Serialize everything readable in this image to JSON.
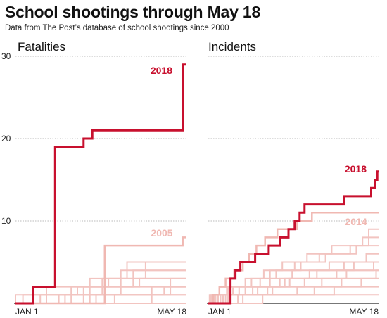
{
  "header": {
    "title": "School shootings through May 18",
    "subtitle": "Data from The Post’s database of school shootings since 2000"
  },
  "colors": {
    "highlight": "#c8102e",
    "faint": "#f2c4c0",
    "faint_label": "#f0b8b2",
    "grid": "#bbbbbb",
    "axis": "#777777"
  },
  "chart_data": [
    {
      "type": "line",
      "step": true,
      "title": "Fatalities",
      "x_unit": "day of year",
      "x_ticks": [
        "JAN 1",
        "MAY 18"
      ],
      "xlim": [
        0,
        138
      ],
      "ylim": [
        0,
        30
      ],
      "y_ticks": [
        10,
        20,
        30
      ],
      "y_tick_labels": [
        "10",
        "20",
        "30"
      ],
      "grid": true,
      "highlight": {
        "name": "2018",
        "points": [
          [
            0,
            0
          ],
          [
            14,
            0
          ],
          [
            14,
            2
          ],
          [
            32,
            2
          ],
          [
            32,
            19
          ],
          [
            55,
            19
          ],
          [
            55,
            20
          ],
          [
            62,
            20
          ],
          [
            62,
            21
          ],
          [
            135,
            21
          ],
          [
            135,
            29
          ],
          [
            138,
            29
          ]
        ]
      },
      "secondary": {
        "name": "2005",
        "points": [
          [
            0,
            0
          ],
          [
            72,
            0
          ],
          [
            72,
            7
          ],
          [
            135,
            7
          ],
          [
            135,
            8
          ],
          [
            138,
            8
          ]
        ]
      },
      "background": [
        [
          [
            0,
            0
          ],
          [
            6,
            0
          ],
          [
            6,
            1
          ],
          [
            138,
            1
          ]
        ],
        [
          [
            0,
            0
          ],
          [
            25,
            0
          ],
          [
            25,
            2
          ],
          [
            138,
            2
          ]
        ],
        [
          [
            0,
            0
          ],
          [
            40,
            0
          ],
          [
            40,
            1
          ],
          [
            70,
            1
          ],
          [
            70,
            3
          ],
          [
            138,
            3
          ]
        ],
        [
          [
            0,
            0
          ],
          [
            55,
            0
          ],
          [
            55,
            2
          ],
          [
            100,
            2
          ],
          [
            100,
            3
          ],
          [
            138,
            3
          ]
        ],
        [
          [
            0,
            0
          ],
          [
            60,
            0
          ],
          [
            60,
            3
          ],
          [
            90,
            3
          ],
          [
            90,
            5
          ],
          [
            138,
            5
          ]
        ],
        [
          [
            0,
            0
          ],
          [
            35,
            0
          ],
          [
            35,
            1
          ],
          [
            85,
            1
          ],
          [
            85,
            4
          ],
          [
            138,
            4
          ]
        ],
        [
          [
            0,
            0
          ],
          [
            110,
            0
          ],
          [
            110,
            2
          ],
          [
            138,
            2
          ]
        ],
        [
          [
            0,
            0
          ],
          [
            20,
            0
          ],
          [
            20,
            1
          ],
          [
            120,
            1
          ],
          [
            120,
            2
          ],
          [
            138,
            2
          ]
        ],
        [
          [
            0,
            0
          ],
          [
            80,
            0
          ],
          [
            80,
            1
          ],
          [
            138,
            1
          ]
        ],
        [
          [
            0,
            0
          ],
          [
            0,
            1
          ],
          [
            50,
            1
          ],
          [
            50,
            2
          ],
          [
            95,
            2
          ],
          [
            95,
            4
          ],
          [
            138,
            4
          ]
        ],
        [
          [
            0,
            0
          ],
          [
            45,
            0
          ],
          [
            45,
            2
          ],
          [
            75,
            2
          ],
          [
            75,
            3
          ],
          [
            105,
            3
          ],
          [
            105,
            5
          ],
          [
            138,
            5
          ]
        ],
        [
          [
            0,
            0
          ],
          [
            65,
            0
          ],
          [
            65,
            1
          ],
          [
            125,
            1
          ],
          [
            125,
            3
          ],
          [
            138,
            3
          ]
        ],
        [
          [
            0,
            0
          ],
          [
            138,
            0
          ]
        ]
      ]
    },
    {
      "type": "line",
      "step": true,
      "title": "Incidents",
      "x_unit": "day of year",
      "x_ticks": [
        "JAN 1",
        "MAY 18"
      ],
      "xlim": [
        0,
        138
      ],
      "ylim": [
        0,
        30
      ],
      "y_ticks": [
        10,
        20,
        30
      ],
      "grid": true,
      "highlight": {
        "name": "2018",
        "points": [
          [
            0,
            0
          ],
          [
            18,
            0
          ],
          [
            18,
            3
          ],
          [
            22,
            3
          ],
          [
            22,
            4
          ],
          [
            26,
            4
          ],
          [
            26,
            5
          ],
          [
            38,
            5
          ],
          [
            38,
            6
          ],
          [
            49,
            6
          ],
          [
            49,
            7
          ],
          [
            58,
            7
          ],
          [
            58,
            8
          ],
          [
            65,
            8
          ],
          [
            65,
            9
          ],
          [
            70,
            9
          ],
          [
            70,
            10
          ],
          [
            74,
            10
          ],
          [
            74,
            11
          ],
          [
            78,
            11
          ],
          [
            78,
            12
          ],
          [
            110,
            12
          ],
          [
            110,
            13
          ],
          [
            132,
            13
          ],
          [
            132,
            14
          ],
          [
            135,
            14
          ],
          [
            135,
            15
          ],
          [
            137,
            15
          ],
          [
            137,
            16
          ],
          [
            138,
            16
          ]
        ]
      },
      "secondary": {
        "name": "2014",
        "points": [
          [
            0,
            0
          ],
          [
            4,
            0
          ],
          [
            4,
            1
          ],
          [
            9,
            1
          ],
          [
            9,
            2
          ],
          [
            14,
            2
          ],
          [
            14,
            3
          ],
          [
            21,
            3
          ],
          [
            21,
            4
          ],
          [
            28,
            4
          ],
          [
            28,
            5
          ],
          [
            33,
            5
          ],
          [
            33,
            6
          ],
          [
            39,
            6
          ],
          [
            39,
            7
          ],
          [
            46,
            7
          ],
          [
            46,
            8
          ],
          [
            56,
            8
          ],
          [
            56,
            9
          ],
          [
            72,
            9
          ],
          [
            72,
            10
          ],
          [
            84,
            10
          ],
          [
            84,
            11
          ],
          [
            138,
            11
          ]
        ]
      },
      "background": [
        [
          [
            0,
            0
          ],
          [
            3,
            0
          ],
          [
            3,
            1
          ],
          [
            15,
            1
          ],
          [
            15,
            2
          ],
          [
            30,
            2
          ],
          [
            30,
            3
          ],
          [
            45,
            3
          ],
          [
            45,
            4
          ],
          [
            60,
            4
          ],
          [
            60,
            5
          ],
          [
            80,
            5
          ],
          [
            80,
            6
          ],
          [
            100,
            6
          ],
          [
            100,
            7
          ],
          [
            125,
            7
          ],
          [
            125,
            8
          ],
          [
            138,
            8
          ]
        ],
        [
          [
            0,
            0
          ],
          [
            8,
            0
          ],
          [
            8,
            1
          ],
          [
            20,
            1
          ],
          [
            20,
            2
          ],
          [
            35,
            2
          ],
          [
            35,
            3
          ],
          [
            55,
            3
          ],
          [
            55,
            4
          ],
          [
            75,
            4
          ],
          [
            75,
            5
          ],
          [
            95,
            5
          ],
          [
            95,
            6
          ],
          [
            120,
            6
          ],
          [
            120,
            7
          ],
          [
            130,
            7
          ],
          [
            130,
            9
          ],
          [
            138,
            9
          ]
        ],
        [
          [
            0,
            0
          ],
          [
            12,
            0
          ],
          [
            12,
            1
          ],
          [
            40,
            1
          ],
          [
            40,
            2
          ],
          [
            62,
            2
          ],
          [
            62,
            3
          ],
          [
            88,
            3
          ],
          [
            88,
            4
          ],
          [
            110,
            4
          ],
          [
            110,
            5
          ],
          [
            138,
            5
          ]
        ],
        [
          [
            0,
            0
          ],
          [
            5,
            0
          ],
          [
            5,
            1
          ],
          [
            25,
            1
          ],
          [
            25,
            2
          ],
          [
            50,
            2
          ],
          [
            50,
            4
          ],
          [
            70,
            4
          ],
          [
            70,
            5
          ],
          [
            90,
            5
          ],
          [
            90,
            6
          ],
          [
            115,
            6
          ],
          [
            115,
            7
          ],
          [
            138,
            7
          ]
        ],
        [
          [
            0,
            0
          ],
          [
            16,
            0
          ],
          [
            16,
            2
          ],
          [
            42,
            2
          ],
          [
            42,
            3
          ],
          [
            68,
            3
          ],
          [
            68,
            4
          ],
          [
            98,
            4
          ],
          [
            98,
            5
          ],
          [
            128,
            5
          ],
          [
            128,
            6
          ],
          [
            138,
            6
          ]
        ],
        [
          [
            0,
            0
          ],
          [
            2,
            0
          ],
          [
            2,
            1
          ],
          [
            30,
            1
          ],
          [
            30,
            2
          ],
          [
            58,
            2
          ],
          [
            58,
            3
          ],
          [
            82,
            3
          ],
          [
            82,
            4
          ],
          [
            118,
            4
          ],
          [
            118,
            5
          ],
          [
            138,
            5
          ]
        ],
        [
          [
            0,
            0
          ],
          [
            24,
            0
          ],
          [
            24,
            1
          ],
          [
            52,
            1
          ],
          [
            52,
            2
          ],
          [
            78,
            2
          ],
          [
            78,
            3
          ],
          [
            104,
            3
          ],
          [
            104,
            4
          ],
          [
            138,
            4
          ]
        ],
        [
          [
            0,
            0
          ],
          [
            10,
            0
          ],
          [
            10,
            1
          ],
          [
            36,
            1
          ],
          [
            36,
            2
          ],
          [
            66,
            2
          ],
          [
            66,
            3
          ],
          [
            112,
            3
          ],
          [
            112,
            4
          ],
          [
            134,
            4
          ],
          [
            134,
            5
          ],
          [
            138,
            5
          ]
        ],
        [
          [
            0,
            0
          ],
          [
            6,
            0
          ],
          [
            6,
            1
          ],
          [
            48,
            1
          ],
          [
            48,
            2
          ],
          [
            92,
            2
          ],
          [
            92,
            3
          ],
          [
            138,
            3
          ]
        ],
        [
          [
            0,
            0
          ],
          [
            28,
            0
          ],
          [
            28,
            1
          ],
          [
            72,
            1
          ],
          [
            72,
            2
          ],
          [
            108,
            2
          ],
          [
            108,
            3
          ],
          [
            136,
            3
          ],
          [
            136,
            4
          ],
          [
            138,
            4
          ]
        ],
        [
          [
            0,
            0
          ],
          [
            14,
            0
          ],
          [
            14,
            1
          ],
          [
            86,
            1
          ],
          [
            86,
            2
          ],
          [
            124,
            2
          ],
          [
            124,
            3
          ],
          [
            138,
            3
          ]
        ],
        [
          [
            0,
            0
          ],
          [
            44,
            0
          ],
          [
            44,
            1
          ],
          [
            102,
            1
          ],
          [
            102,
            2
          ],
          [
            138,
            2
          ]
        ],
        [
          [
            0,
            0
          ],
          [
            1,
            0
          ],
          [
            1,
            1
          ],
          [
            138,
            1
          ]
        ]
      ]
    }
  ]
}
